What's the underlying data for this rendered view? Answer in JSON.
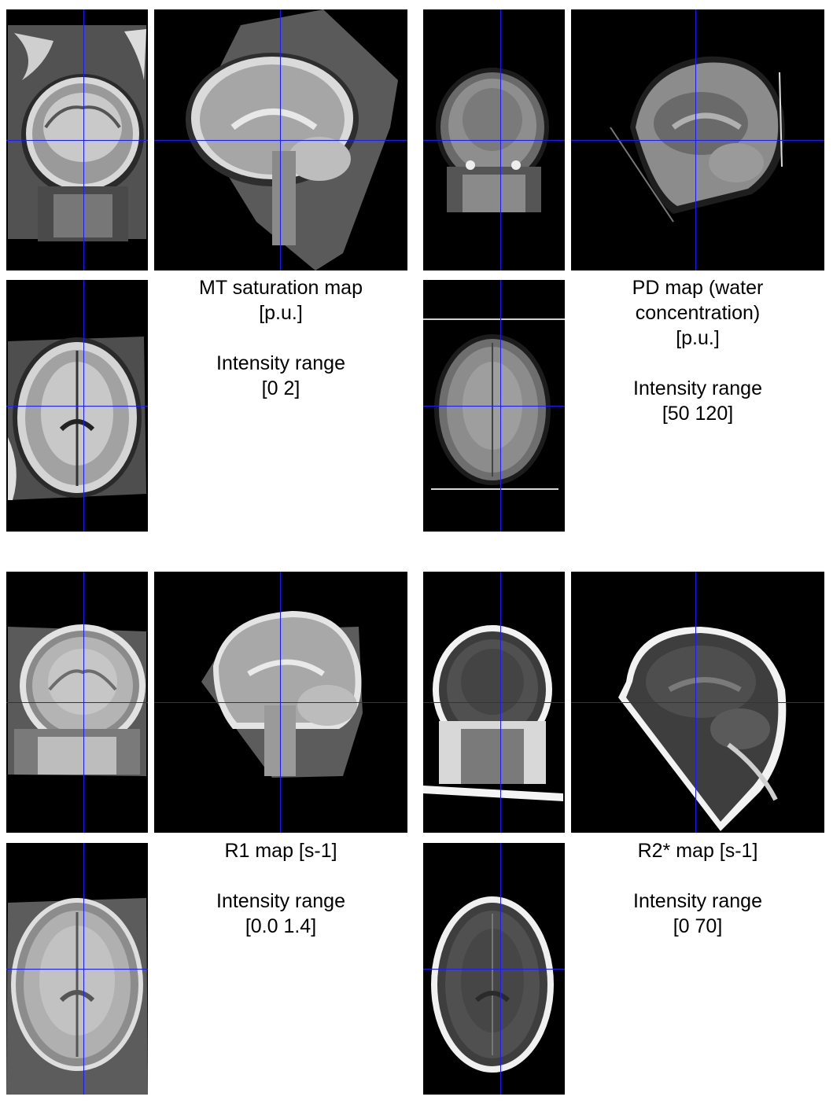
{
  "figure": {
    "crosshair_color": "#1a1aff",
    "panels": [
      {
        "id": "mt",
        "views": [
          "coronal",
          "sagittal",
          "axial"
        ],
        "title_lines": [
          "MT saturation map",
          "[p.u.]"
        ],
        "range_label": "Intensity range",
        "range_value": "[0 2]"
      },
      {
        "id": "pd",
        "views": [
          "coronal",
          "sagittal",
          "axial"
        ],
        "title_lines": [
          "PD map (water",
          "concentration)",
          "[p.u.]"
        ],
        "range_label": "Intensity range",
        "range_value": "[50 120]"
      },
      {
        "id": "r1",
        "views": [
          "coronal",
          "sagittal",
          "axial"
        ],
        "title_lines": [
          "R1 map [s-1]"
        ],
        "range_label": "Intensity range",
        "range_value": "[0.0 1.4]"
      },
      {
        "id": "r2s",
        "views": [
          "coronal",
          "sagittal",
          "axial"
        ],
        "title_lines": [
          "R2* map [s-1]"
        ],
        "range_label": "Intensity range",
        "range_value": "[0 70]"
      }
    ]
  }
}
